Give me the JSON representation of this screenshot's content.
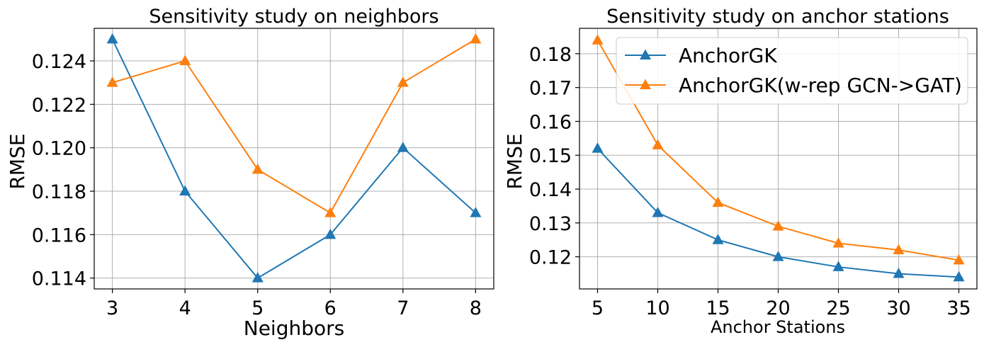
{
  "chart_data": [
    {
      "type": "line",
      "title": "Sensitivity study on neighbors",
      "xlabel": "Neighbors",
      "ylabel": "RMSE",
      "x": [
        3,
        4,
        5,
        6,
        7,
        8
      ],
      "xticks": [
        "3",
        "4",
        "5",
        "6",
        "7",
        "8"
      ],
      "yticks": [
        "0.114",
        "0.116",
        "0.118",
        "0.120",
        "0.122",
        "0.124"
      ],
      "ylim": [
        0.1135,
        0.1255
      ],
      "xlim": [
        2.75,
        8.25
      ],
      "grid": true,
      "series": [
        {
          "values": [
            0.125,
            0.118,
            0.114,
            0.116,
            0.12,
            0.117
          ],
          "color": "#1f77b4"
        },
        {
          "values": [
            0.123,
            0.124,
            0.119,
            0.117,
            0.123,
            0.125
          ],
          "color": "#ff7f0e"
        }
      ]
    },
    {
      "type": "line",
      "title": "Sensitivity study on anchor stations",
      "xlabel": "Anchor Stations",
      "ylabel": "RMSE",
      "x": [
        5,
        10,
        15,
        20,
        25,
        30,
        35
      ],
      "xticks": [
        "5",
        "10",
        "15",
        "20",
        "25",
        "30",
        "35"
      ],
      "yticks": [
        "0.12",
        "0.13",
        "0.14",
        "0.15",
        "0.16",
        "0.17",
        "0.18"
      ],
      "ylim": [
        0.1105,
        0.1875
      ],
      "xlim": [
        3.5,
        36.5
      ],
      "grid": true,
      "legend_position": "top-right",
      "series": [
        {
          "name": "AnchorGK",
          "values": [
            0.152,
            0.133,
            0.125,
            0.12,
            0.117,
            0.115,
            0.114
          ],
          "color": "#1f77b4"
        },
        {
          "name": "AnchorGK(w-rep GCN->GAT)",
          "values": [
            0.184,
            0.153,
            0.136,
            0.129,
            0.124,
            0.122,
            0.119
          ],
          "color": "#ff7f0e"
        }
      ]
    }
  ]
}
